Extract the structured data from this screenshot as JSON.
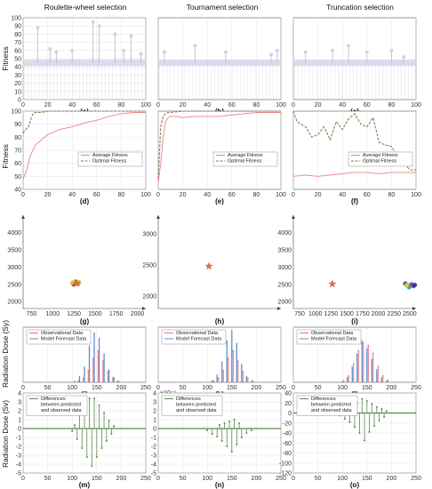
{
  "column_titles": [
    "Roulette-wheel selection",
    "Tournament selection",
    "Truncation selection"
  ],
  "row_ylabels": {
    "fitness_top": "Fitness",
    "fitness_mid": "Fitness",
    "dose_top": "Radiation Dose (Sy)",
    "dose_bottom": "Radiation Dose (Sv)"
  },
  "panel_labels": [
    "(a)",
    "(b)",
    "(c)",
    "(d)",
    "(e)",
    "(f)",
    "(g)",
    "(h)",
    "(i)",
    "(j)",
    "(k)",
    "(l)",
    "(m)",
    "(n)",
    "(o)"
  ],
  "legends": {
    "fitness": [
      "Average Fitness",
      "Optimal Fitness"
    ],
    "forecast": [
      "Observational Data",
      "Model Forecast Data"
    ],
    "differences": [
      "Differences",
      "between predicted",
      "and observed data"
    ]
  },
  "scale_note": "×10⁻⁵",
  "colors": {
    "pop_fill": "#dcd3ea",
    "pop_stem": "#b9a9cf",
    "avg_fitness": "#f08080",
    "opt_fitness": "#8b7a5a",
    "observed": "#e8707a",
    "forecast": "#5b8fd0",
    "difference": "#5a8a4a",
    "star": "#e8703a"
  },
  "chart_data": [
    {
      "id": "a",
      "type": "bar",
      "xlim": [
        0,
        100
      ],
      "ylim": [
        0,
        100
      ],
      "yticks": [
        0,
        10,
        20,
        30,
        40,
        50,
        60,
        70,
        80,
        90,
        100
      ],
      "xticks": [
        0,
        20,
        40,
        60,
        80,
        100
      ],
      "baseline": 45,
      "spikes": [
        [
          12,
          88
        ],
        [
          22,
          62
        ],
        [
          27,
          58
        ],
        [
          40,
          60
        ],
        [
          57,
          95
        ],
        [
          62,
          90
        ],
        [
          75,
          80
        ],
        [
          82,
          60
        ],
        [
          88,
          78
        ],
        [
          96,
          56
        ]
      ]
    },
    {
      "id": "b",
      "type": "bar",
      "xlim": [
        0,
        100
      ],
      "ylim": [
        0,
        100
      ],
      "xticks": [
        0,
        20,
        40,
        60,
        80,
        100
      ],
      "baseline": 45,
      "spikes": [
        [
          5,
          58
        ],
        [
          30,
          66
        ],
        [
          55,
          58
        ],
        [
          92,
          55
        ],
        [
          97,
          60
        ]
      ]
    },
    {
      "id": "c",
      "type": "bar",
      "xlim": [
        0,
        100
      ],
      "ylim": [
        0,
        100
      ],
      "xticks": [
        0,
        20,
        40,
        60,
        80,
        100
      ],
      "baseline": 45,
      "spikes": [
        [
          10,
          58
        ],
        [
          32,
          60
        ],
        [
          45,
          66
        ],
        [
          60,
          58
        ],
        [
          80,
          60
        ],
        [
          90,
          52
        ]
      ]
    },
    {
      "id": "d",
      "type": "line",
      "xlim": [
        0,
        100
      ],
      "ylim": [
        40,
        100
      ],
      "yticks": [
        40,
        50,
        60,
        70,
        80,
        90,
        100
      ],
      "xticks": [
        0,
        20,
        40,
        60,
        80,
        100
      ],
      "series": [
        {
          "name": "Average Fitness",
          "x": [
            0,
            3,
            6,
            10,
            15,
            20,
            30,
            40,
            50,
            60,
            70,
            80,
            90,
            100
          ],
          "y": [
            48,
            55,
            66,
            74,
            78,
            82,
            86,
            88,
            91,
            93,
            96,
            98,
            99,
            99
          ]
        },
        {
          "name": "Optimal Fitness",
          "x": [
            0,
            2,
            4,
            6,
            8,
            10,
            15,
            20,
            30,
            40,
            60,
            80,
            100
          ],
          "y": [
            83,
            86,
            87,
            93,
            98,
            99,
            99,
            100,
            100,
            100,
            100,
            100,
            100
          ]
        }
      ]
    },
    {
      "id": "e",
      "type": "line",
      "xlim": [
        0,
        100
      ],
      "ylim": [
        40,
        100
      ],
      "xticks": [
        0,
        20,
        40,
        60,
        80,
        100
      ],
      "series": [
        {
          "name": "Average Fitness",
          "x": [
            0,
            2,
            4,
            6,
            8,
            10,
            15,
            20,
            30,
            40,
            50,
            60,
            70,
            80,
            90,
            100
          ],
          "y": [
            45,
            60,
            80,
            92,
            95,
            96,
            96,
            95,
            96,
            96,
            96,
            97,
            98,
            99,
            99,
            99
          ]
        },
        {
          "name": "Optimal Fitness",
          "x": [
            0,
            2,
            4,
            6,
            8,
            10,
            20,
            40,
            60,
            80,
            100
          ],
          "y": [
            48,
            88,
            96,
            98,
            99,
            99,
            100,
            100,
            100,
            100,
            100
          ]
        }
      ]
    },
    {
      "id": "f",
      "type": "line",
      "xlim": [
        0,
        100
      ],
      "ylim": [
        40,
        100
      ],
      "xticks": [
        0,
        20,
        40,
        60,
        80,
        100
      ],
      "series": [
        {
          "name": "Average Fitness",
          "x": [
            0,
            10,
            20,
            30,
            40,
            50,
            60,
            70,
            80,
            90,
            100
          ],
          "y": [
            50,
            51,
            50,
            51,
            52,
            53,
            53,
            52,
            53,
            53,
            53
          ]
        },
        {
          "name": "Optimal Fitness",
          "x": [
            0,
            3,
            6,
            10,
            15,
            20,
            25,
            30,
            35,
            40,
            45,
            50,
            55,
            60,
            65,
            70,
            75,
            80,
            85,
            90,
            95,
            100
          ],
          "y": [
            100,
            92,
            90,
            88,
            80,
            82,
            88,
            78,
            92,
            86,
            94,
            98,
            90,
            88,
            95,
            76,
            74,
            73,
            65,
            60,
            55,
            55
          ]
        }
      ]
    },
    {
      "id": "g",
      "type": "scatter",
      "xlim": [
        650,
        2100
      ],
      "ylim": [
        1800,
        4500
      ],
      "xticks": [
        750,
        1000,
        1250,
        1500,
        1750,
        2000
      ],
      "yticks": [
        2000,
        2500,
        3000,
        3500,
        4000
      ],
      "points": [
        [
          1230,
          2540,
          "#e8c020"
        ],
        [
          1260,
          2520,
          "#e8a030"
        ],
        [
          1280,
          2560,
          "#f0d040"
        ],
        [
          1250,
          2500,
          "#8040a0"
        ],
        [
          1300,
          2530,
          "#d04040"
        ],
        [
          1270,
          2580,
          "#40a040"
        ],
        [
          1240,
          2560,
          "#e8d030"
        ],
        [
          1310,
          2560,
          "#e0b040"
        ]
      ],
      "star": [
        1280,
        2520
      ]
    },
    {
      "id": "h",
      "type": "scatter",
      "xlim": [
        650,
        2100
      ],
      "ylim": [
        1800,
        3300
      ],
      "yticks": [
        2000,
        2500,
        3000
      ],
      "points": [],
      "star": [
        1250,
        2480
      ]
    },
    {
      "id": "i",
      "type": "scatter",
      "xlim": [
        650,
        2600
      ],
      "ylim": [
        1800,
        4500
      ],
      "xticks": [
        750,
        1000,
        1250,
        1500,
        1750,
        2000,
        2250,
        2500
      ],
      "yticks": [
        2000,
        2500,
        3000,
        3500,
        4000
      ],
      "points": [
        [
          2430,
          2520,
          "#2050c0"
        ],
        [
          2470,
          2490,
          "#e8d020"
        ],
        [
          2500,
          2460,
          "#e8d020"
        ],
        [
          2530,
          2500,
          "#4060d0"
        ],
        [
          2490,
          2420,
          "#20a0c0"
        ],
        [
          2560,
          2450,
          "#8040a0"
        ],
        [
          2450,
          2470,
          "#f0c030"
        ],
        [
          2580,
          2480,
          "#303080"
        ]
      ],
      "star": [
        1270,
        2510
      ]
    },
    {
      "id": "j",
      "type": "bar",
      "xlim": [
        0,
        250
      ],
      "xticks": [
        0,
        50,
        100,
        150,
        200,
        250
      ],
      "observed": [
        [
          110,
          2
        ],
        [
          120,
          8
        ],
        [
          130,
          22
        ],
        [
          140,
          45
        ],
        [
          150,
          60
        ],
        [
          160,
          40
        ],
        [
          170,
          20
        ],
        [
          180,
          8
        ],
        [
          190,
          2
        ]
      ],
      "forecast": [
        [
          105,
          3
        ],
        [
          115,
          12
        ],
        [
          125,
          30
        ],
        [
          135,
          70
        ],
        [
          145,
          95
        ],
        [
          155,
          85
        ],
        [
          165,
          55
        ],
        [
          175,
          25
        ],
        [
          185,
          10
        ],
        [
          195,
          3
        ]
      ]
    },
    {
      "id": "k",
      "type": "bar",
      "xlim": [
        0,
        250
      ],
      "xticks": [
        0,
        50,
        100,
        150,
        200,
        250
      ],
      "observed": [
        [
          110,
          2
        ],
        [
          120,
          8
        ],
        [
          130,
          22
        ],
        [
          140,
          45
        ],
        [
          150,
          60
        ],
        [
          160,
          40
        ],
        [
          170,
          20
        ],
        [
          180,
          8
        ],
        [
          190,
          2
        ]
      ],
      "forecast": [
        [
          110,
          4
        ],
        [
          120,
          15
        ],
        [
          130,
          40
        ],
        [
          140,
          80
        ],
        [
          150,
          100
        ],
        [
          160,
          75
        ],
        [
          170,
          35
        ],
        [
          180,
          12
        ],
        [
          190,
          3
        ]
      ]
    },
    {
      "id": "l",
      "type": "bar",
      "xlim": [
        0,
        250
      ],
      "xticks": [
        0,
        50,
        100,
        150,
        200,
        250
      ],
      "observed": [
        [
          100,
          3
        ],
        [
          110,
          12
        ],
        [
          120,
          35
        ],
        [
          130,
          60
        ],
        [
          140,
          75
        ],
        [
          150,
          70
        ],
        [
          160,
          55
        ],
        [
          170,
          30
        ],
        [
          180,
          12
        ],
        [
          190,
          4
        ]
      ],
      "forecast": [
        [
          100,
          2
        ],
        [
          110,
          10
        ],
        [
          120,
          30
        ],
        [
          130,
          55
        ],
        [
          140,
          80
        ],
        [
          150,
          65
        ],
        [
          160,
          45
        ],
        [
          170,
          25
        ],
        [
          180,
          10
        ],
        [
          190,
          3
        ]
      ]
    },
    {
      "id": "m",
      "type": "bar",
      "xlim": [
        0,
        250
      ],
      "ylim": [
        -5,
        4
      ],
      "xticks": [
        0,
        50,
        100,
        150,
        200,
        250
      ],
      "yticks": [
        -5,
        -4,
        -3,
        -2,
        -1,
        0,
        1,
        2,
        3,
        4
      ],
      "values": [
        [
          100,
          -0.3
        ],
        [
          105,
          0.4
        ],
        [
          110,
          -1.2
        ],
        [
          115,
          1.5
        ],
        [
          120,
          -2.2
        ],
        [
          125,
          2.8
        ],
        [
          130,
          -3.2
        ],
        [
          135,
          3.4
        ],
        [
          140,
          -4.2
        ],
        [
          145,
          3.4
        ],
        [
          150,
          -3.2
        ],
        [
          155,
          2.6
        ],
        [
          160,
          -2.2
        ],
        [
          165,
          1.8
        ],
        [
          170,
          -1.4
        ],
        [
          175,
          0.9
        ],
        [
          180,
          -0.6
        ],
        [
          185,
          0.3
        ]
      ]
    },
    {
      "id": "n",
      "type": "bar",
      "xlim": [
        0,
        250
      ],
      "ylim": [
        -5,
        4
      ],
      "xticks": [
        0,
        50,
        100,
        150,
        200,
        250
      ],
      "yticks": [
        -5,
        -4,
        -3,
        -2,
        -1,
        0,
        1,
        2,
        3,
        4
      ],
      "values": [
        [
          100,
          -0.2
        ],
        [
          110,
          -0.6
        ],
        [
          120,
          -0.9
        ],
        [
          125,
          0.4
        ],
        [
          130,
          -1.4
        ],
        [
          135,
          0.6
        ],
        [
          140,
          -2.0
        ],
        [
          145,
          0.8
        ],
        [
          150,
          -2.6
        ],
        [
          155,
          1.0
        ],
        [
          160,
          -1.8
        ],
        [
          165,
          0.6
        ],
        [
          170,
          -1.0
        ],
        [
          180,
          -0.5
        ],
        [
          190,
          -0.2
        ]
      ]
    },
    {
      "id": "o",
      "type": "bar",
      "xlim": [
        0,
        250
      ],
      "ylim": [
        -120,
        40
      ],
      "xticks": [
        0,
        50,
        100,
        150,
        200,
        250
      ],
      "yticks": [
        -120,
        -100,
        -80,
        -60,
        -40,
        -20,
        0,
        20,
        40
      ],
      "values": [
        [
          95,
          -5
        ],
        [
          100,
          8
        ],
        [
          105,
          -12
        ],
        [
          110,
          10
        ],
        [
          115,
          -18
        ],
        [
          120,
          14
        ],
        [
          125,
          -28
        ],
        [
          130,
          20
        ],
        [
          135,
          -40
        ],
        [
          140,
          28
        ],
        [
          145,
          -55
        ],
        [
          150,
          24
        ],
        [
          155,
          -38
        ],
        [
          160,
          18
        ],
        [
          165,
          -26
        ],
        [
          170,
          12
        ],
        [
          175,
          -15
        ],
        [
          180,
          8
        ],
        [
          185,
          -8
        ],
        [
          190,
          4
        ]
      ]
    }
  ]
}
